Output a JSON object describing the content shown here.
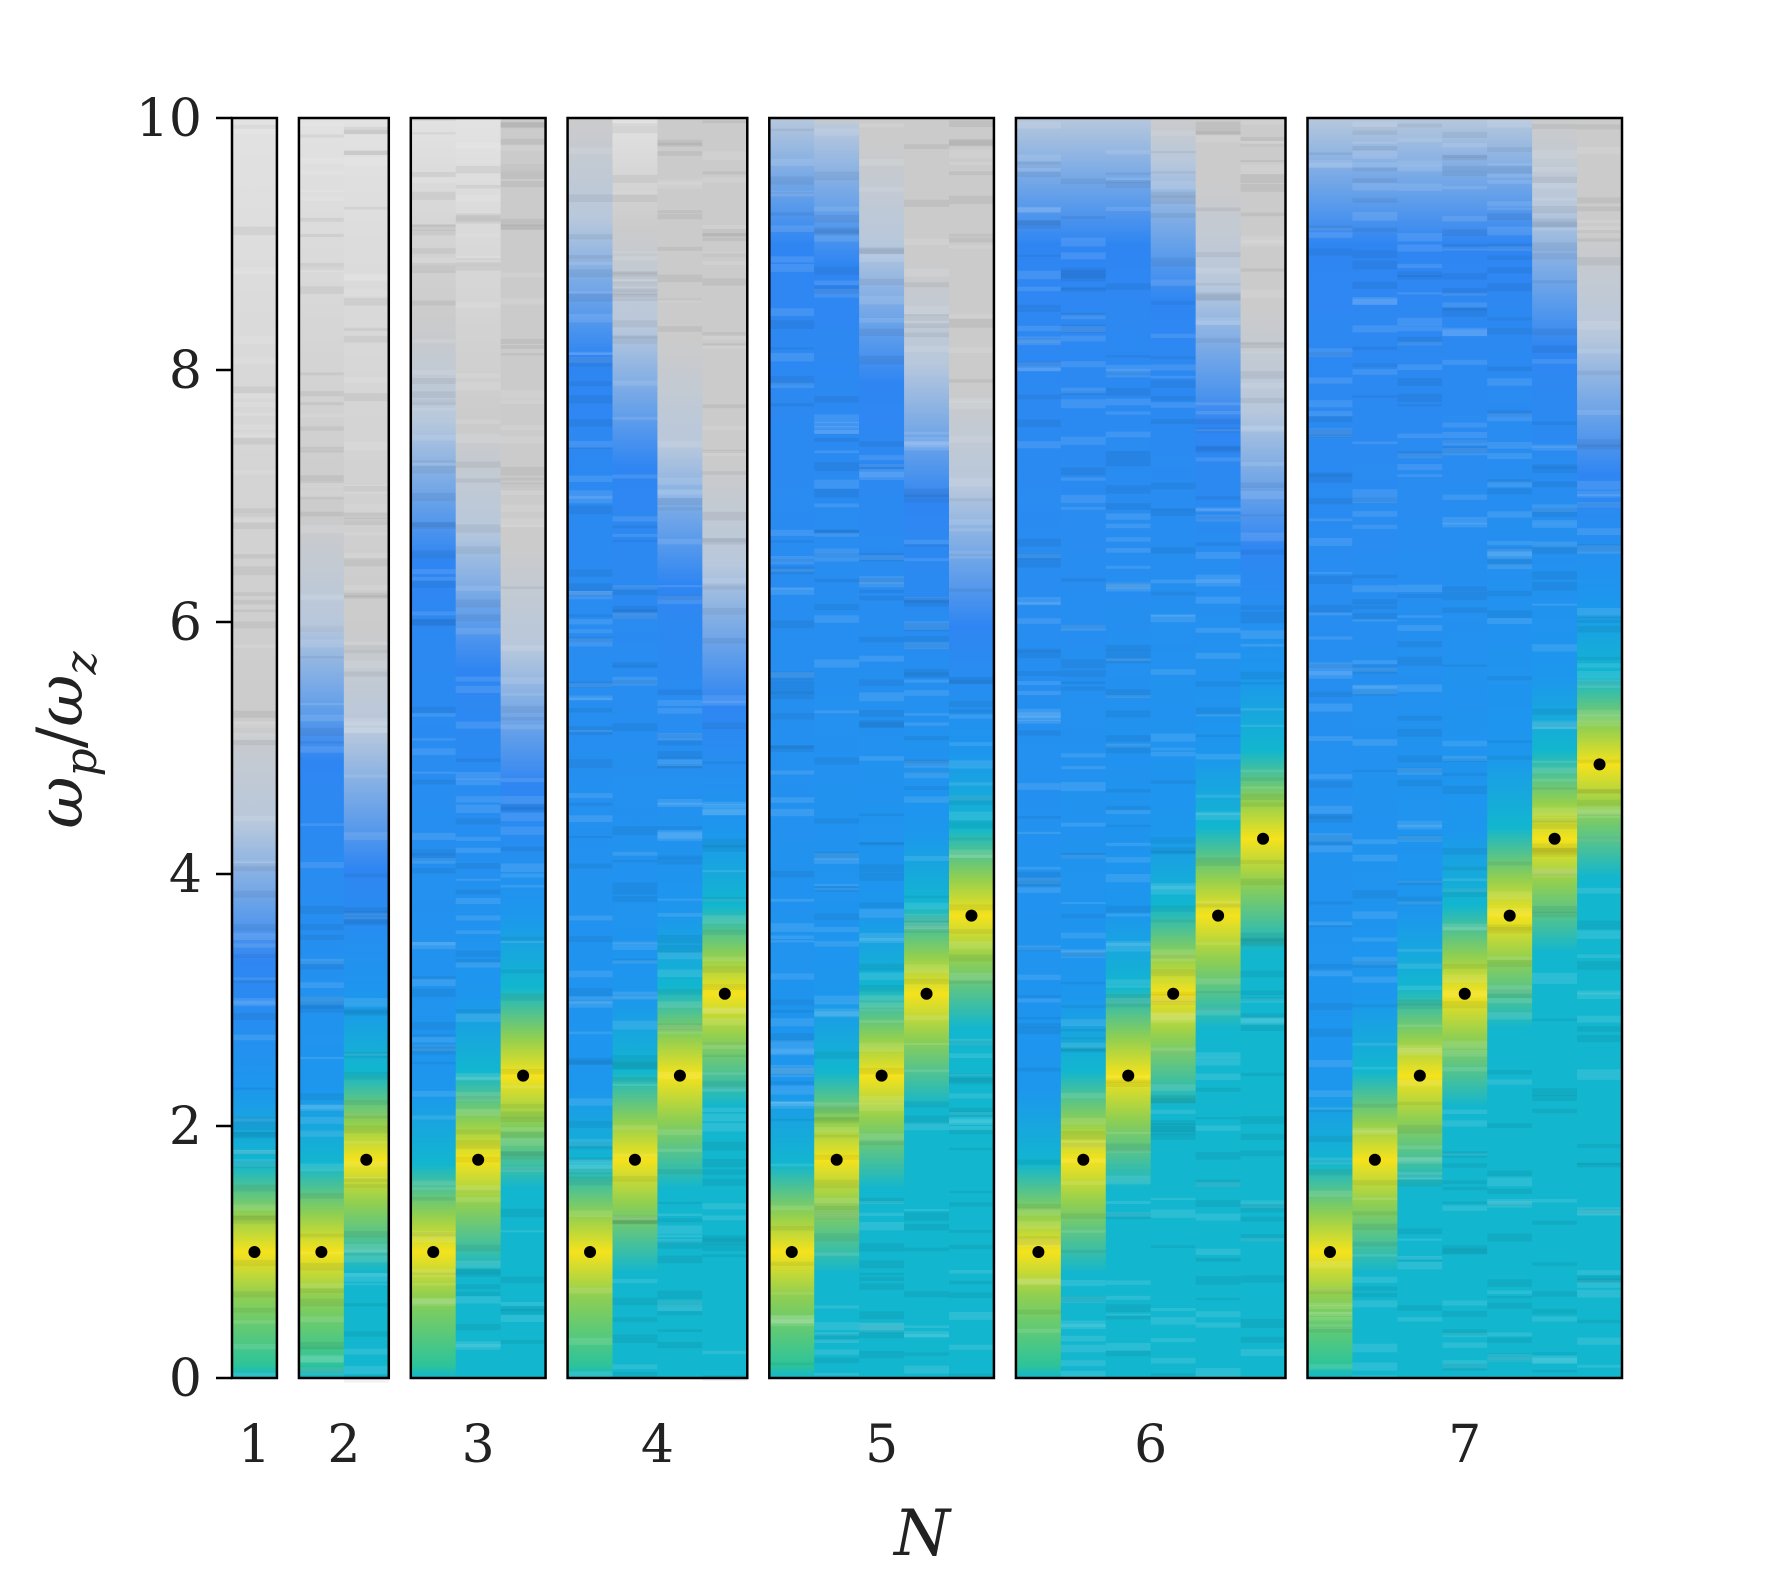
{
  "chart_data": {
    "type": "heatmap",
    "title": "",
    "xlabel": "N",
    "ylabel_main": "ω",
    "ylabel_sub_p": "p",
    "ylabel_sep": "/",
    "ylabel_sub_z": "z",
    "ylim": [
      0,
      10
    ],
    "yticks": [
      0,
      2,
      4,
      6,
      8,
      10
    ],
    "grid": false,
    "colors": {
      "dark_blue": "#2f86f2",
      "mid_blue": "#1d96ee",
      "cyan": "#12b6cf",
      "green": "#2dc49a",
      "yellow_green": "#8fcf52",
      "yellow": "#f5e21c",
      "light_gray": "#e2e2e2",
      "mid_gray": "#cbcbcb",
      "marker": "#000000",
      "frame": "#000000"
    },
    "groups": [
      {
        "N": 1,
        "label": "1",
        "modes": [
          1.0
        ]
      },
      {
        "N": 2,
        "label": "2",
        "modes": [
          1.0,
          1.732
        ]
      },
      {
        "N": 3,
        "label": "3",
        "modes": [
          1.0,
          1.732,
          2.4
        ]
      },
      {
        "N": 4,
        "label": "4",
        "modes": [
          1.0,
          1.732,
          2.4,
          3.05
        ]
      },
      {
        "N": 5,
        "label": "5",
        "modes": [
          1.0,
          1.732,
          2.4,
          3.05,
          3.67
        ]
      },
      {
        "N": 6,
        "label": "6",
        "modes": [
          1.0,
          1.732,
          2.4,
          3.05,
          3.67,
          4.28
        ]
      },
      {
        "N": 7,
        "label": "7",
        "modes": [
          1.0,
          1.732,
          2.4,
          3.05,
          3.67,
          4.28,
          4.87
        ]
      }
    ]
  }
}
